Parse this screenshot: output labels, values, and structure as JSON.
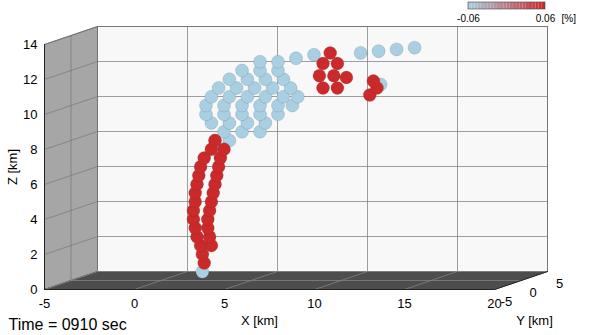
{
  "chart_data": {
    "type": "scatter3d",
    "caption": "Time = 0910 sec",
    "xlabel": "X [km]",
    "ylabel": "Y [km]",
    "zlabel": "Z [km]",
    "xlim": [
      -5,
      20
    ],
    "ylim": [
      -5,
      5
    ],
    "zlim": [
      0,
      14
    ],
    "xticks": [
      -5,
      0,
      5,
      10,
      15,
      20
    ],
    "yticks": [
      -5,
      0,
      5
    ],
    "zticks": [
      0,
      2,
      4,
      6,
      8,
      10,
      12,
      14
    ],
    "grid": true,
    "colorbar": {
      "range": [
        -0.06,
        0.06
      ],
      "ticks": [
        -0.06,
        0.06
      ],
      "label": "[%]",
      "colors": [
        "#a9cfe3",
        "#cc2a2a"
      ]
    },
    "series": [
      {
        "value": -0.06,
        "points": [
          [
            2.3,
            0,
            0.5
          ],
          [
            3.0,
            0,
            8.0
          ],
          [
            3.8,
            0,
            8.0
          ],
          [
            3.5,
            0,
            8.5
          ],
          [
            4.5,
            0,
            8.5
          ],
          [
            5.5,
            0,
            8.5
          ],
          [
            2.8,
            0,
            9.0
          ],
          [
            3.8,
            0,
            9.0
          ],
          [
            4.8,
            0,
            9.0
          ],
          [
            5.8,
            0,
            9.0
          ],
          [
            2.5,
            0,
            9.5
          ],
          [
            3.5,
            0,
            9.5
          ],
          [
            4.5,
            0,
            9.5
          ],
          [
            5.5,
            0,
            9.5
          ],
          [
            6.5,
            0,
            9.5
          ],
          [
            2.5,
            0,
            10.0
          ],
          [
            3.5,
            0,
            10.0
          ],
          [
            4.5,
            0,
            10.0
          ],
          [
            5.5,
            0,
            10.0
          ],
          [
            6.5,
            0,
            10.0
          ],
          [
            7.3,
            0,
            10.0
          ],
          [
            2.8,
            0,
            10.5
          ],
          [
            3.8,
            0,
            10.5
          ],
          [
            4.8,
            0,
            10.5
          ],
          [
            5.8,
            0,
            10.5
          ],
          [
            6.8,
            0,
            10.5
          ],
          [
            7.6,
            0,
            10.5
          ],
          [
            3.2,
            0,
            11.0
          ],
          [
            4.2,
            0,
            11.0
          ],
          [
            5.2,
            0,
            11.0
          ],
          [
            6.2,
            0,
            11.0
          ],
          [
            7.2,
            0,
            11.0
          ],
          [
            3.8,
            0,
            11.5
          ],
          [
            4.8,
            0,
            11.5
          ],
          [
            5.8,
            0,
            11.5
          ],
          [
            6.8,
            0,
            11.5
          ],
          [
            4.5,
            0,
            12.0
          ],
          [
            5.5,
            0,
            12.0
          ],
          [
            6.5,
            0,
            12.0
          ],
          [
            5.5,
            0,
            12.5
          ],
          [
            6.5,
            0,
            12.5
          ],
          [
            7.5,
            0,
            12.7
          ],
          [
            8.5,
            0,
            12.9
          ],
          [
            10.5,
            2,
            12.8
          ],
          [
            11.5,
            2,
            12.9
          ],
          [
            12.5,
            2,
            13.0
          ],
          [
            13.5,
            2,
            13.1
          ],
          [
            12.2,
            0,
            11.2
          ]
        ]
      },
      {
        "value": 0.06,
        "points": [
          [
            2.4,
            0,
            1.0
          ],
          [
            2.3,
            0,
            1.5
          ],
          [
            2.2,
            0,
            2.0
          ],
          [
            2.8,
            0,
            2.0
          ],
          [
            2.0,
            0,
            2.5
          ],
          [
            2.7,
            0,
            2.5
          ],
          [
            1.9,
            0,
            3.0
          ],
          [
            2.6,
            0,
            3.0
          ],
          [
            1.8,
            0,
            3.5
          ],
          [
            2.6,
            0,
            3.5
          ],
          [
            1.8,
            0,
            4.0
          ],
          [
            2.7,
            0,
            4.0
          ],
          [
            1.9,
            0,
            4.5
          ],
          [
            2.8,
            0,
            4.5
          ],
          [
            1.9,
            0,
            5.0
          ],
          [
            2.9,
            0,
            5.0
          ],
          [
            2.0,
            0,
            5.5
          ],
          [
            3.0,
            0,
            5.5
          ],
          [
            2.1,
            0,
            6.0
          ],
          [
            3.1,
            0,
            6.0
          ],
          [
            2.2,
            0,
            6.5
          ],
          [
            3.2,
            0,
            6.5
          ],
          [
            2.4,
            0,
            7.0
          ],
          [
            3.3,
            0,
            7.0
          ],
          [
            2.8,
            0,
            7.5
          ],
          [
            3.5,
            0,
            7.5
          ],
          [
            3.0,
            0,
            8.0
          ],
          [
            9.0,
            0,
            11.0
          ],
          [
            9.8,
            0,
            11.0
          ],
          [
            8.8,
            0,
            11.7
          ],
          [
            9.6,
            0,
            11.7
          ],
          [
            10.3,
            0,
            11.6
          ],
          [
            9.0,
            0,
            12.4
          ],
          [
            9.8,
            0,
            12.4
          ],
          [
            9.4,
            0,
            13.0
          ],
          [
            11.6,
            0,
            10.6
          ],
          [
            12.0,
            0,
            11.0
          ],
          [
            11.8,
            0,
            11.4
          ]
        ]
      }
    ]
  }
}
